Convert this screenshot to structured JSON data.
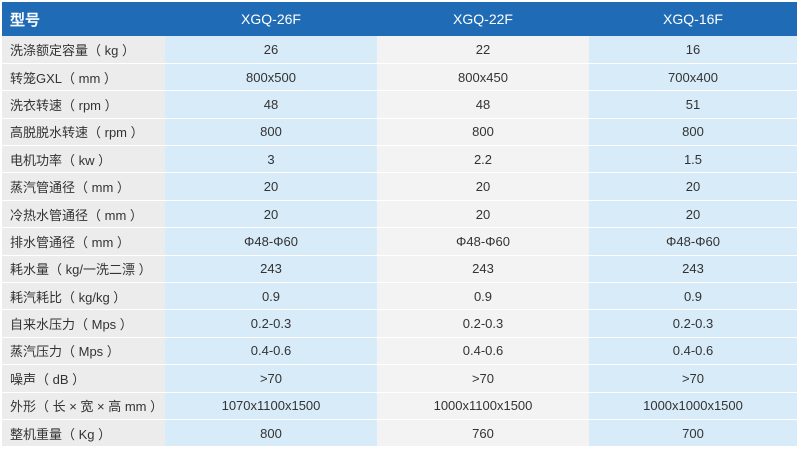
{
  "header": {
    "label": "型号",
    "models": [
      "XGQ-26F",
      "XGQ-22F",
      "XGQ-16F"
    ]
  },
  "rows": [
    {
      "label": "洗涤额定容量（ kg ）",
      "values": [
        "26",
        "22",
        "16"
      ]
    },
    {
      "label": "转笼GXL（ mm ）",
      "values": [
        "800x500",
        "800x450",
        "700x400"
      ]
    },
    {
      "label": "洗衣转速（ rpm ）",
      "values": [
        "48",
        "48",
        "51"
      ]
    },
    {
      "label": "高脱脱水转速（ rpm ）",
      "values": [
        "800",
        "800",
        "800"
      ]
    },
    {
      "label": "电机功率（ kw ）",
      "values": [
        "3",
        "2.2",
        "1.5"
      ]
    },
    {
      "label": "蒸汽管通径（ mm ）",
      "values": [
        "20",
        "20",
        "20"
      ]
    },
    {
      "label": "冷热水管通径（ mm ）",
      "values": [
        "20",
        "20",
        "20"
      ]
    },
    {
      "label": "排水管通径（ mm ）",
      "values": [
        "Φ48-Φ60",
        "Φ48-Φ60",
        "Φ48-Φ60"
      ]
    },
    {
      "label": "耗水量（ kg/一洗二漂 ）",
      "values": [
        "243",
        "243",
        "243"
      ]
    },
    {
      "label": "耗汽耗比（ kg/kg ）",
      "values": [
        "0.9",
        "0.9",
        "0.9"
      ]
    },
    {
      "label": "自来水压力（ Mps ）",
      "values": [
        "0.2-0.3",
        "0.2-0.3",
        "0.2-0.3"
      ]
    },
    {
      "label": "蒸汽压力（ Mps ）",
      "values": [
        "0.4-0.6",
        "0.4-0.6",
        "0.4-0.6"
      ]
    },
    {
      "label": "噪声（ dB ）",
      "values": [
        ">70",
        ">70",
        ">70"
      ]
    },
    {
      "label": "外形（ 长 × 宽 × 高 mm ）",
      "values": [
        "1070x1100x1500",
        "1000x1100x1500",
        "1000x1000x1500"
      ]
    },
    {
      "label": "整机重量（ Kg ）",
      "values": [
        "800",
        "760",
        "700"
      ]
    }
  ]
}
